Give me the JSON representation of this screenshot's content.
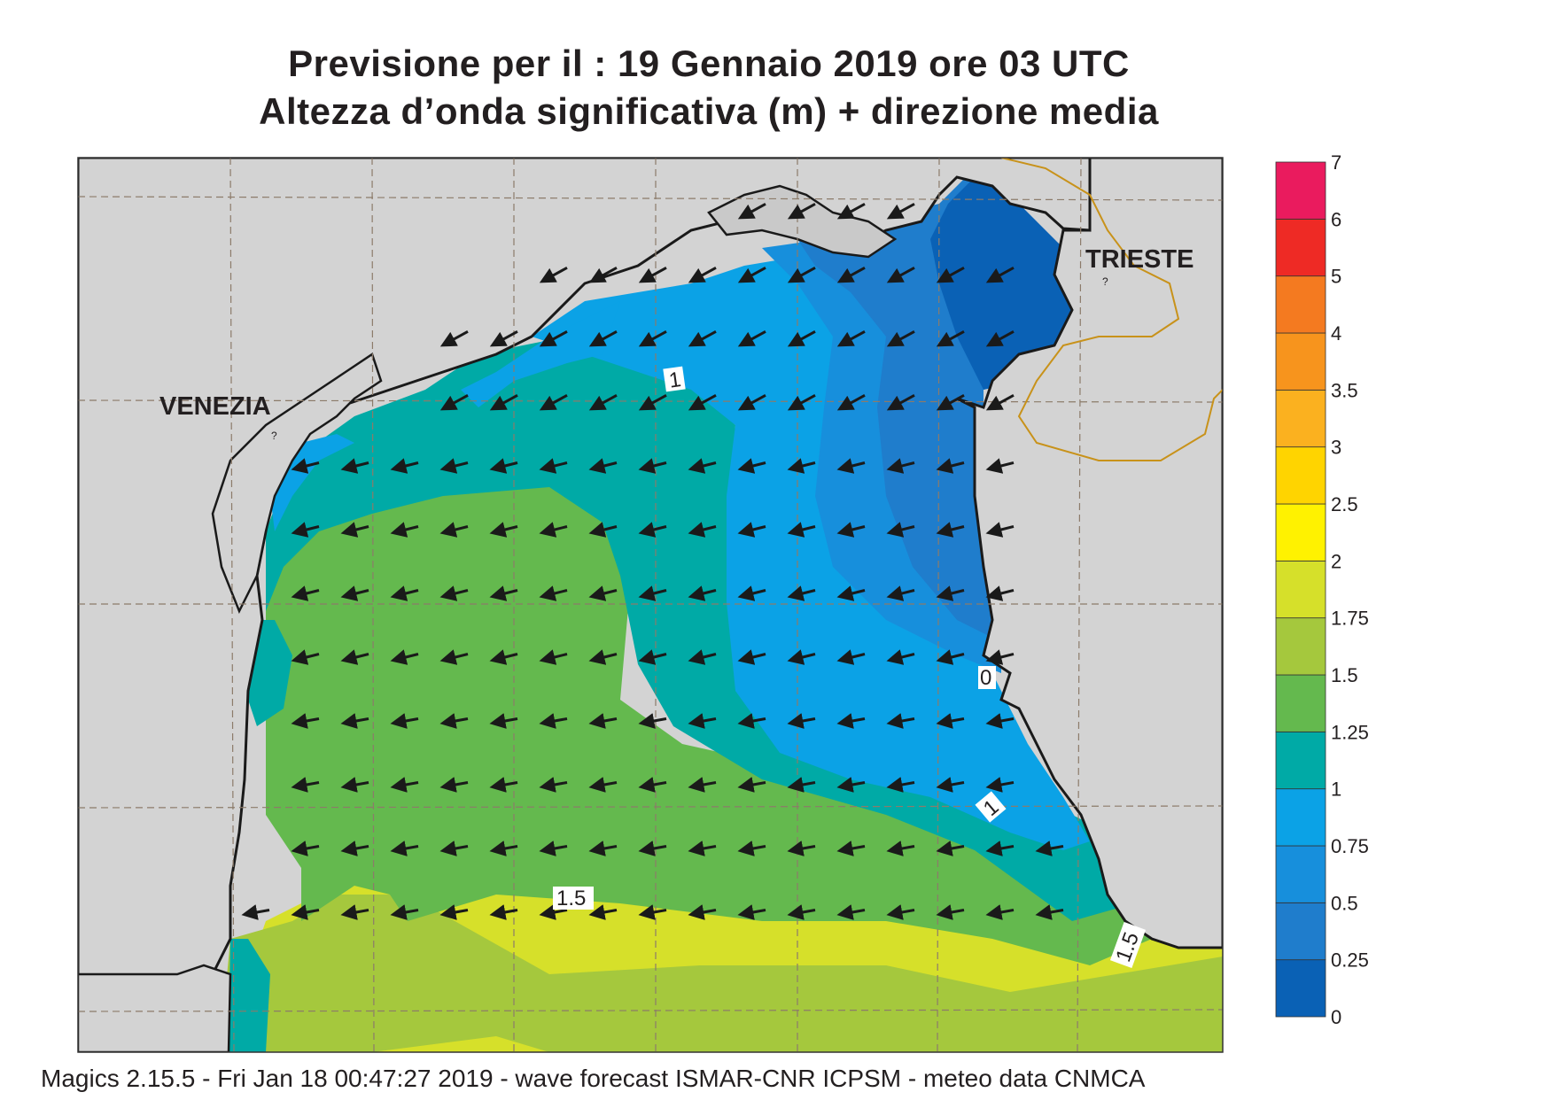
{
  "title": {
    "line1": "Previsione per il  :  19  Gennaio  2019   ore 03 UTC",
    "line2": "Altezza d’onda significativa (m) + direzione media"
  },
  "map": {
    "labels": {
      "venezia": "VENEZIA",
      "trieste": "TRIESTE"
    },
    "contour_labels": [
      "1",
      "1.5",
      "0",
      "1",
      "1.5"
    ],
    "unknown_marks": [
      "?",
      "?"
    ],
    "arrow_direction": "west-southwest",
    "colors": {
      "land": "#d3d3d3",
      "border": "#c8921a",
      "grid": "#8c7b6a"
    }
  },
  "legend": {
    "levels": [
      "0",
      "0.25",
      "0.5",
      "0.75",
      "1",
      "1.25",
      "1.5",
      "1.75",
      "2",
      "2.5",
      "3",
      "3.5",
      "4",
      "5",
      "6",
      "7"
    ],
    "colors": [
      "#0a61b5",
      "#1f7dcc",
      "#178fdc",
      "#0ba2e6",
      "#00aaa6",
      "#64b94e",
      "#a5c83d",
      "#d6e02a",
      "#fff200",
      "#ffd400",
      "#fbb11f",
      "#f7941d",
      "#f47a20",
      "#ee2a25",
      "#ea1b5e"
    ]
  },
  "footer": {
    "text": "Magics 2.15.5 - Fri Jan 18 00:47:27 2019 - wave forecast  ISMAR-CNR  ICPSM - meteo data   CNMCA"
  }
}
